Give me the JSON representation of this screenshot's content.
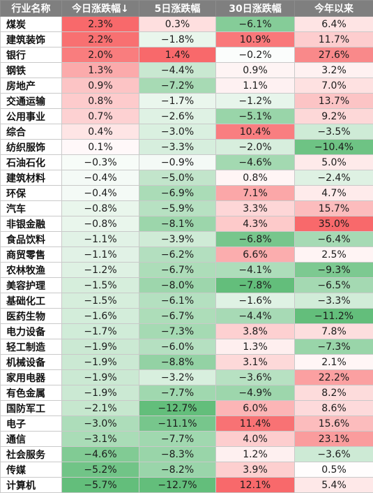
{
  "headers": [
    "行业名称",
    "今日涨跌幅↓",
    "5日涨跌幅",
    "30日涨跌幅",
    "今年以来"
  ],
  "rows": [
    [
      "煤炭",
      "2.3%",
      "0.3%",
      "−6.1%",
      "6.4%"
    ],
    [
      "建筑装饰",
      "2.2%",
      "−1.8%",
      "10.9%",
      "11.7%"
    ],
    [
      "银行",
      "2.0%",
      "1.4%",
      "−0.2%",
      "27.6%"
    ],
    [
      "钢铁",
      "1.3%",
      "−4.4%",
      "0.9%",
      "3.2%"
    ],
    [
      "房地产",
      "0.9%",
      "−7.2%",
      "1.1%",
      "7.0%"
    ],
    [
      "交通运输",
      "0.8%",
      "−1.7%",
      "−1.2%",
      "13.7%"
    ],
    [
      "公用事业",
      "0.7%",
      "−2.6%",
      "−5.1%",
      "9.2%"
    ],
    [
      "综合",
      "0.4%",
      "−3.0%",
      "10.4%",
      "−3.5%"
    ],
    [
      "纺织服饰",
      "0.1%",
      "−3.3%",
      "−2.0%",
      "−10.4%"
    ],
    [
      "石油石化",
      "−0.3%",
      "−0.9%",
      "−4.6%",
      "5.0%"
    ],
    [
      "建筑材料",
      "−0.4%",
      "−5.0%",
      "0.8%",
      "−2.4%"
    ],
    [
      "环保",
      "−0.4%",
      "−6.9%",
      "7.1%",
      "4.7%"
    ],
    [
      "汽车",
      "−0.8%",
      "−5.9%",
      "3.3%",
      "15.7%"
    ],
    [
      "非银金融",
      "−0.8%",
      "−8.1%",
      "4.3%",
      "35.0%"
    ],
    [
      "食品饮料",
      "−1.1%",
      "−3.9%",
      "−6.8%",
      "−6.4%"
    ],
    [
      "商贸零售",
      "−1.1%",
      "−6.2%",
      "6.6%",
      "2.5%"
    ],
    [
      "农林牧渔",
      "−1.2%",
      "−6.7%",
      "−4.1%",
      "−9.3%"
    ],
    [
      "美容护理",
      "−1.5%",
      "−8.0%",
      "−7.8%",
      "−6.5%"
    ],
    [
      "基础化工",
      "−1.5%",
      "−6.1%",
      "−1.6%",
      "−3.3%"
    ],
    [
      "医药生物",
      "−1.6%",
      "−6.7%",
      "−4.4%",
      "−11.2%"
    ],
    [
      "电力设备",
      "−1.7%",
      "−7.3%",
      "3.8%",
      "7.8%"
    ],
    [
      "轻工制造",
      "−1.9%",
      "−6.0%",
      "1.3%",
      "−7.3%"
    ],
    [
      "机械设备",
      "−1.9%",
      "−8.8%",
      "3.1%",
      "2.1%"
    ],
    [
      "家用电器",
      "−1.9%",
      "−3.2%",
      "−3.6%",
      "22.2%"
    ],
    [
      "有色金属",
      "−1.9%",
      "−7.7%",
      "−4.9%",
      "8.2%"
    ],
    [
      "国防军工",
      "−2.1%",
      "−12.7%",
      "6.0%",
      "8.6%"
    ],
    [
      "电子",
      "−3.0%",
      "−11.1%",
      "11.4%",
      "15.6%"
    ],
    [
      "通信",
      "−3.1%",
      "−7.7%",
      "4.0%",
      "23.1%"
    ],
    [
      "社会服务",
      "−4.6%",
      "−8.3%",
      "1.2%",
      "−3.6%"
    ],
    [
      "传媒",
      "−5.2%",
      "−8.2%",
      "3.9%",
      "0.5%"
    ],
    [
      "计算机",
      "−5.7%",
      "−12.7%",
      "12.1%",
      "5.4%"
    ]
  ],
  "colors": {
    "header_bg": "#7f7f7f",
    "positive_max": "#f8696b",
    "negative_max": "#63be7b",
    "neutral": "#ffffff"
  }
}
